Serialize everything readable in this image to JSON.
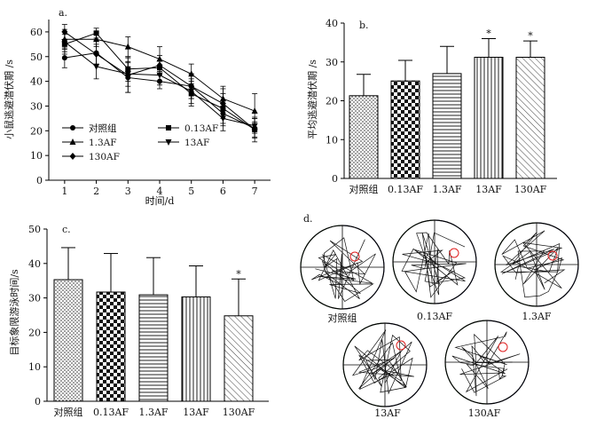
{
  "chart_data": [
    {
      "panel": "a.",
      "type": "line",
      "xlabel": "时间/d",
      "ylabel": "小鼠逃避潜伏期 /s",
      "x": [
        1,
        2,
        3,
        4,
        5,
        6,
        7
      ],
      "xlim": [
        0.5,
        7.5
      ],
      "ylim": [
        0,
        65
      ],
      "yticks": [
        0,
        10,
        20,
        30,
        40,
        50,
        60
      ],
      "series": [
        {
          "name": "对照组",
          "marker": "circle",
          "values": [
            49.5,
            51.5,
            41.5,
            40,
            38,
            27,
            21
          ],
          "err": [
            4,
            5,
            6,
            3,
            5,
            5,
            4
          ]
        },
        {
          "name": "0.13AF",
          "marker": "square",
          "values": [
            55,
            59.5,
            45,
            45.5,
            35,
            29,
            20.5
          ],
          "err": [
            4,
            2,
            5,
            3,
            5,
            6,
            3
          ]
        },
        {
          "name": "1.3AF",
          "marker": "triangle-up",
          "values": [
            57,
            57,
            54,
            49,
            43,
            33,
            28
          ],
          "err": [
            4,
            3,
            4,
            5,
            4,
            5,
            7
          ]
        },
        {
          "name": "13AF",
          "marker": "triangle-down",
          "values": [
            56,
            46,
            43,
            42.5,
            36,
            25,
            22
          ],
          "err": [
            4,
            5,
            5,
            4,
            5,
            5,
            3
          ]
        },
        {
          "name": "130AF",
          "marker": "diamond",
          "values": [
            60,
            51,
            42.5,
            46.5,
            38,
            31,
            20.5
          ],
          "err": [
            3,
            4,
            7,
            4,
            5,
            6,
            5
          ]
        }
      ]
    },
    {
      "panel": "b.",
      "type": "bar",
      "ylabel": "平均逃避潜伏期 /s",
      "categories": [
        "对照组",
        "0.13AF",
        "1.3AF",
        "13AF",
        "130AF"
      ],
      "values": [
        21.3,
        25.1,
        27,
        31.2,
        31.2
      ],
      "err": [
        5.5,
        5.3,
        7,
        4.8,
        4.2
      ],
      "sig": [
        "",
        "",
        "",
        "*",
        "*"
      ],
      "ylim": [
        0,
        40
      ],
      "yticks": [
        0,
        10,
        20,
        30,
        40
      ]
    },
    {
      "panel": "c.",
      "type": "bar",
      "ylabel": "目标象限游泳时间/s",
      "categories": [
        "对照组",
        "0.13AF",
        "1.3AF",
        "13AF",
        "130AF"
      ],
      "values": [
        35.3,
        31.7,
        30.9,
        30.3,
        24.8
      ],
      "err": [
        9.3,
        11.2,
        10.8,
        9,
        10.7
      ],
      "sig": [
        "",
        "",
        "",
        "",
        "*"
      ],
      "ylim": [
        0,
        50
      ],
      "yticks": [
        0,
        10,
        20,
        30,
        40,
        50
      ]
    }
  ],
  "panel_d": {
    "label": "d.",
    "pools": [
      "对照组",
      "0.13AF",
      "1.3AF",
      "13AF",
      "130AF"
    ],
    "colors": {
      "pool_left": "#3aa13a",
      "pool_right": "#3a46c8",
      "platform": "#e02020",
      "path": "#111111"
    }
  }
}
